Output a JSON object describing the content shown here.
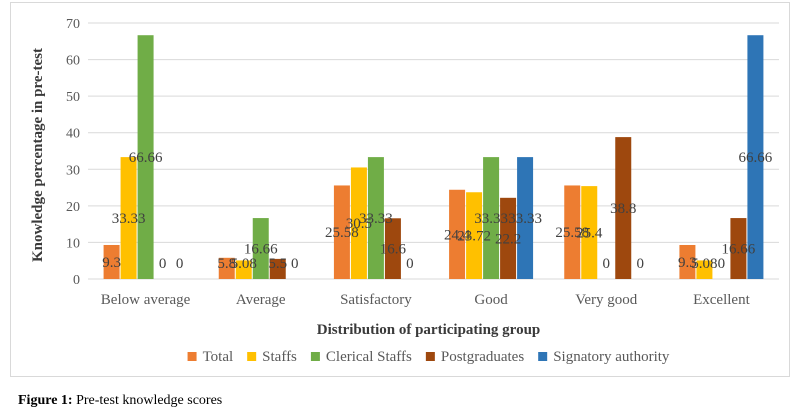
{
  "chart_data": {
    "type": "bar",
    "title": "",
    "xlabel": "Distribution of participating group",
    "ylabel": "Knowledge percentage in pre-test",
    "ylim": [
      0,
      70
    ],
    "yticks": [
      0,
      10,
      20,
      30,
      40,
      50,
      60,
      70
    ],
    "grid": true,
    "legend_position": "bottom",
    "categories": [
      "Below average",
      "Average",
      "Satisfactory",
      "Good",
      "Very good",
      "Excellent"
    ],
    "series": [
      {
        "name": "Total",
        "color": "#ed7d31",
        "values": [
          9.3,
          5.8,
          25.58,
          24.4,
          25.58,
          9.3
        ],
        "labels": [
          "9.3",
          "5.8",
          "25.58",
          "24.4",
          "25.58",
          "9.3"
        ]
      },
      {
        "name": "Staffs",
        "color": "#ffc000",
        "values": [
          33.33,
          5.08,
          30.5,
          23.72,
          25.4,
          5.08
        ],
        "labels": [
          "33.33",
          "5.08",
          "30.5",
          "23.72",
          "25.4",
          "5.08"
        ]
      },
      {
        "name": "Clerical Staffs",
        "color": "#70ad47",
        "values": [
          66.66,
          16.66,
          33.33,
          33.33,
          0,
          0
        ],
        "labels": [
          "66.66",
          "16.66",
          "33.33",
          "33.33",
          "0",
          "0"
        ]
      },
      {
        "name": "Postgraduates",
        "color": "#9e480e",
        "values": [
          0,
          5.5,
          16.6,
          22.2,
          38.8,
          16.66
        ],
        "labels": [
          "0",
          "5.5",
          "16.6",
          "22.2",
          "38.8",
          "16.66"
        ]
      },
      {
        "name": "Signatory authority",
        "color": "#2e75b6",
        "values": [
          0,
          0,
          0,
          33.33,
          0,
          66.66
        ],
        "labels": [
          "0",
          "0",
          "0",
          "33.33",
          "0",
          "66.66"
        ]
      }
    ]
  },
  "caption": {
    "label": "Figure 1:",
    "text": " Pre-test knowledge scores"
  }
}
